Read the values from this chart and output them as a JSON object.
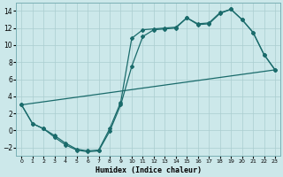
{
  "xlabel": "Humidex (Indice chaleur)",
  "bg_color": "#cce8ea",
  "grid_color": "#aacdd0",
  "line_color": "#1a6b6b",
  "line1_x": [
    0,
    1,
    2,
    3,
    4,
    5,
    6,
    7,
    8,
    9,
    10,
    11,
    12,
    13,
    14,
    15,
    16,
    17,
    18,
    19,
    20,
    21,
    22,
    23
  ],
  "line1_y": [
    3,
    0.8,
    0.2,
    -0.6,
    -1.5,
    -2.2,
    -2.4,
    -2.3,
    0.2,
    3.3,
    10.8,
    11.8,
    11.9,
    12.0,
    12.1,
    13.2,
    12.5,
    12.6,
    13.8,
    14.2,
    13.0,
    11.5,
    8.9,
    7.1
  ],
  "line2_x": [
    0,
    1,
    2,
    3,
    4,
    5,
    6,
    7,
    8,
    9,
    10,
    11,
    12,
    13,
    14,
    15,
    16,
    17,
    18,
    19,
    20,
    21,
    22,
    23
  ],
  "line2_y": [
    3,
    0.8,
    0.2,
    -0.8,
    -1.7,
    -2.3,
    -2.5,
    -2.4,
    -0.1,
    3.0,
    7.5,
    11.0,
    11.8,
    11.9,
    12.0,
    13.2,
    12.4,
    12.5,
    13.7,
    14.2,
    13.0,
    11.5,
    8.9,
    7.1
  ],
  "line3_x": [
    0,
    23
  ],
  "line3_y": [
    3,
    7.1
  ],
  "ylim": [
    -3,
    15
  ],
  "xlim": [
    -0.5,
    23.5
  ],
  "yticks": [
    -2,
    0,
    2,
    4,
    6,
    8,
    10,
    12,
    14
  ],
  "xticks": [
    0,
    1,
    2,
    3,
    4,
    5,
    6,
    7,
    8,
    9,
    10,
    11,
    12,
    13,
    14,
    15,
    16,
    17,
    18,
    19,
    20,
    21,
    22,
    23
  ]
}
